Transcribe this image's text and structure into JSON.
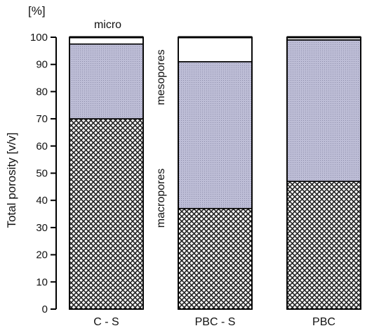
{
  "chart_data": {
    "type": "bar",
    "stacked": true,
    "categories": [
      "C - S",
      "PBC - S",
      "PBC"
    ],
    "series": [
      {
        "name": "macropores",
        "values": [
          70,
          37,
          47
        ],
        "fill": "crosshatch"
      },
      {
        "name": "mesopores",
        "values": [
          27.5,
          54,
          52
        ],
        "fill": "dotted-lavender"
      },
      {
        "name": "micro",
        "values": [
          2.5,
          9,
          1
        ],
        "fill": "white"
      }
    ],
    "ylabel": "Total porosity [v/v]",
    "unit_label": "[%]",
    "ylim": [
      0,
      100
    ],
    "yticks": [
      0,
      10,
      20,
      30,
      40,
      50,
      60,
      70,
      80,
      90,
      100
    ],
    "grid": false,
    "colors": {
      "mesopores": "#b9b9d3",
      "macropores_ink": "#222222",
      "axis": "#000000"
    }
  }
}
